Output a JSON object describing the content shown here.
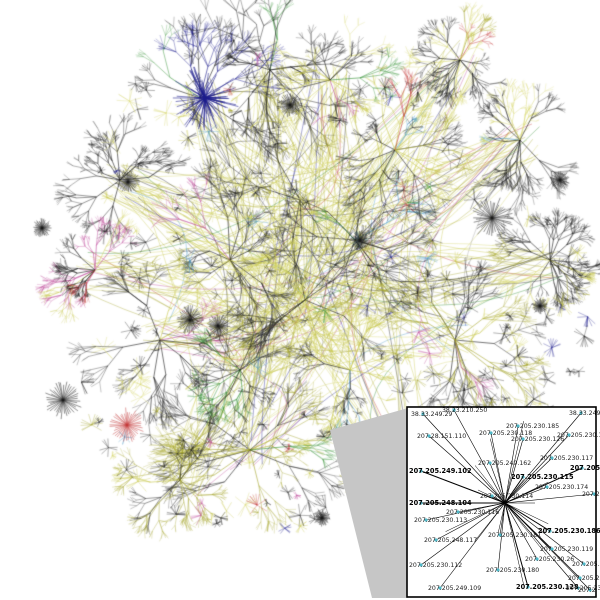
{
  "diagram": {
    "colors": {
      "background": "#ffffff",
      "edge_palette": [
        "#1a1a1a",
        "#1c1c8c",
        "#c8c84a",
        "#d8d86e",
        "#a6a62e",
        "#2f8f2f",
        "#c04a9c",
        "#c43a3a",
        "#4a9cc8",
        "#9a9a9a"
      ],
      "inset_border": "#000000",
      "inset_line": "#000000",
      "inset_node": "#4fb8c8",
      "zoom_shadow": "#c6c6c6"
    },
    "inset": {
      "labels": [
        {
          "id": "l01",
          "text": "38.33.249.29",
          "bold": false
        },
        {
          "id": "l02",
          "text": "38.23.210.250",
          "bold": false
        },
        {
          "id": "l03",
          "text": "38.33.249.25",
          "bold": false
        },
        {
          "id": "l04",
          "text": "207.28.151.110",
          "bold": false
        },
        {
          "id": "l05",
          "text": "207.205.230.185",
          "bold": false
        },
        {
          "id": "l06",
          "text": "207.205.230.118",
          "bold": false
        },
        {
          "id": "l07",
          "text": "207.205.230.126",
          "bold": false
        },
        {
          "id": "l08",
          "text": "207.205.230.123",
          "bold": false
        },
        {
          "id": "l09",
          "text": "207.205.249.162",
          "bold": false
        },
        {
          "id": "l10",
          "text": "207.205.230.117",
          "bold": false
        },
        {
          "id": "l11",
          "text": "207.205.249.102",
          "bold": true
        },
        {
          "id": "l12",
          "text": "207.205.230.115",
          "bold": true
        },
        {
          "id": "l13",
          "text": "207.205.230.",
          "bold": true
        },
        {
          "id": "l14",
          "text": "207.205.230.174",
          "bold": false
        },
        {
          "id": "l15",
          "text": "207.205.",
          "bold": false
        },
        {
          "id": "l16",
          "text": "207.205.248.104",
          "bold": true
        },
        {
          "id": "l17",
          "text": "207.205.230.114",
          "bold": false
        },
        {
          "id": "l18",
          "text": "207.205.230.116",
          "bold": false
        },
        {
          "id": "l19",
          "text": "207.205.230.113",
          "bold": false
        },
        {
          "id": "l20",
          "text": "207.205.230.186",
          "bold": true
        },
        {
          "id": "l21",
          "text": "207.205.248.117",
          "bold": false
        },
        {
          "id": "l22",
          "text": "207.205.230.181",
          "bold": false
        },
        {
          "id": "l23",
          "text": "207.205.230.119",
          "bold": false
        },
        {
          "id": "l24",
          "text": "207.205.230.26",
          "bold": false
        },
        {
          "id": "l25",
          "text": "207.205.230.112",
          "bold": false
        },
        {
          "id": "l26",
          "text": "207.205.230.180",
          "bold": false
        },
        {
          "id": "l27",
          "text": "207.205.230.155",
          "bold": false
        },
        {
          "id": "l28",
          "text": "207.205.24",
          "bold": false
        },
        {
          "id": "l29",
          "text": "207.205.249.109",
          "bold": false
        },
        {
          "id": "l30",
          "text": "207.205.230.128",
          "bold": true
        },
        {
          "id": "l31",
          "text": "207.205.230.1",
          "bold": false
        },
        {
          "id": "l32",
          "text": "207.2",
          "bold": false
        }
      ]
    }
  }
}
